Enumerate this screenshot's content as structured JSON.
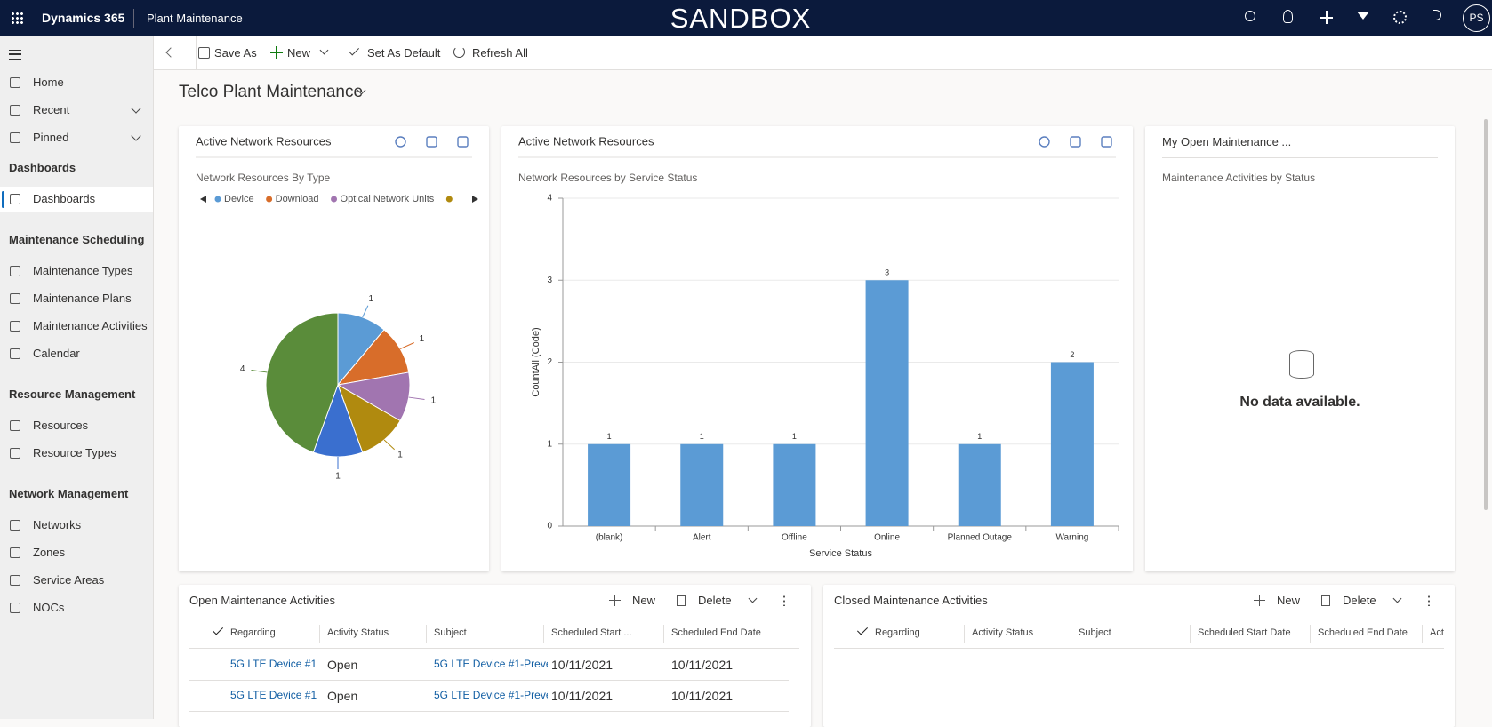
{
  "header": {
    "app": "Dynamics 365",
    "area": "Plant Maintenance",
    "environment": "SANDBOX",
    "avatar": "PS"
  },
  "nav": {
    "items": [
      "Home",
      "Recent",
      "Pinned"
    ],
    "groups": [
      {
        "title": "Dashboards",
        "items": [
          "Dashboards"
        ]
      },
      {
        "title": "Maintenance Scheduling",
        "items": [
          "Maintenance Types",
          "Maintenance Plans",
          "Maintenance Activities",
          "Calendar"
        ]
      },
      {
        "title": "Resource Management",
        "items": [
          "Resources",
          "Resource Types"
        ]
      },
      {
        "title": "Network Management",
        "items": [
          "Networks",
          "Zones",
          "Service Areas",
          "NOCs"
        ]
      }
    ]
  },
  "toolbar": [
    "Save As",
    "New",
    "Set As Default",
    "Refresh All"
  ],
  "dashboard_title": "Telco Plant Maintenance",
  "chart_data": [
    {
      "type": "pie",
      "title": "Active Network Resources",
      "subtitle": "Network Resources By Type",
      "categories": [
        "Device",
        "Download",
        "Optical Network Units",
        null,
        null,
        null
      ],
      "values": [
        1,
        1,
        1,
        1,
        1,
        4
      ],
      "colors": [
        "#5b9bd5",
        "#d86d2a",
        "#a175b0",
        "#b08a0f",
        "#3a6fcf",
        "#5a8c3a"
      ]
    },
    {
      "type": "bar",
      "title": "Active Network Resources",
      "subtitle": "Network Resources by Service Status",
      "x_label": "Service Status",
      "y_label": "CountAll (Code)",
      "categories": [
        "(blank)",
        "Alert",
        "Offline",
        "Online",
        "Planned Outage",
        "Warning"
      ],
      "values": [
        1,
        1,
        1,
        3,
        1,
        2
      ],
      "color": "#5b9bd5",
      "ylim": [
        0,
        4
      ],
      "yticks": [
        0,
        1,
        2,
        3,
        4
      ],
      "grid": true
    }
  ],
  "empty_card": {
    "title": "My Open Maintenance ...",
    "subtitle": "Maintenance Activities by Status",
    "message": "No data available."
  },
  "tables": [
    {
      "title": "Open Maintenance Activities",
      "actions": [
        "New",
        "Delete"
      ],
      "columns": [
        "Regarding",
        "Activity Status",
        "Subject",
        "Scheduled Start ...",
        "Scheduled End Date"
      ],
      "rows": [
        [
          "5G LTE Device #1",
          "Open",
          "5G LTE Device #1-Preve",
          "10/11/2021",
          "10/11/2021"
        ],
        [
          "5G LTE Device #1",
          "Open",
          "5G LTE Device #1-Preve",
          "10/11/2021",
          "10/11/2021"
        ]
      ]
    },
    {
      "title": "Closed Maintenance Activities",
      "actions": [
        "New",
        "Delete"
      ],
      "columns": [
        "Regarding",
        "Activity Status",
        "Subject",
        "Scheduled Start Date",
        "Scheduled End Date",
        "Act"
      ],
      "rows": []
    }
  ]
}
